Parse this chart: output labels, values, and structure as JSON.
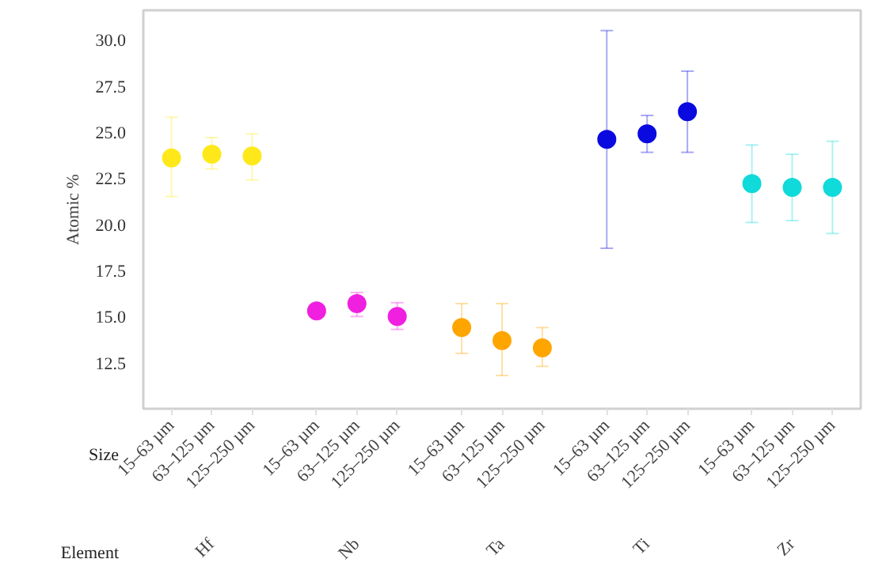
{
  "chart_data": {
    "type": "scatter",
    "categories": [
      "15–63 µm",
      "63–125 µm",
      "125–250 µm",
      "15–63 µm",
      "63–125 µm",
      "125–250 µm",
      "15–63 µm",
      "63–125 µm",
      "125–250 µm",
      "15–63 µm",
      "63–125 µm",
      "125–250 µm",
      "15–63 µm",
      "63–125 µm",
      "125–250 µm"
    ],
    "ylabel": "Atomic %",
    "ylim": [
      10.0,
      31.6
    ],
    "yticks": [
      12.5,
      {
        "value": 15,
        "label": "15.0"
      },
      17.5,
      {
        "value": 20,
        "label": "20.0"
      },
      22.5,
      {
        "value": 25,
        "label": "25.0"
      },
      27.5,
      {
        "value": 30,
        "label": "30.0"
      }
    ],
    "grid": false,
    "marker": "circle",
    "annotations": [
      "Size",
      "Element",
      "Hf",
      "Nb",
      "Ta",
      "Ti",
      "Zr"
    ],
    "series": [
      {
        "color": "#ffe81a",
        "values": [
          23.6,
          23.8,
          23.7,
          null,
          null,
          null,
          null,
          null,
          null,
          null,
          null,
          null,
          null,
          null,
          null
        ],
        "errors": [
          [
            21.5,
            25.8
          ],
          [
            23.0,
            24.7
          ],
          [
            22.4,
            24.9
          ],
          null,
          null,
          null,
          null,
          null,
          null,
          null,
          null,
          null,
          null,
          null,
          null
        ]
      },
      {
        "color": "#f020e0",
        "values": [
          null,
          null,
          null,
          15.3,
          15.7,
          15.0,
          null,
          null,
          null,
          null,
          null,
          null,
          null,
          null,
          null
        ],
        "errors": [
          null,
          null,
          null,
          null,
          [
            15.0,
            16.3
          ],
          [
            14.3,
            15.75
          ],
          null,
          null,
          null,
          null,
          null,
          null,
          null,
          null,
          null
        ]
      },
      {
        "color": "#ffa500",
        "values": [
          null,
          null,
          null,
          null,
          null,
          null,
          14.4,
          13.7,
          13.3,
          null,
          null,
          null,
          null,
          null,
          null
        ],
        "errors": [
          null,
          null,
          null,
          null,
          null,
          null,
          [
            13.0,
            15.7
          ],
          [
            11.8,
            15.7
          ],
          [
            12.3,
            14.4
          ],
          null,
          null,
          null,
          null,
          null,
          null
        ]
      },
      {
        "color": "#0a0ae0",
        "values": [
          null,
          null,
          null,
          null,
          null,
          null,
          null,
          null,
          null,
          24.6,
          24.9,
          26.1,
          null,
          null,
          null
        ],
        "errors": [
          null,
          null,
          null,
          null,
          null,
          null,
          null,
          null,
          null,
          [
            18.7,
            30.5
          ],
          [
            23.9,
            25.9
          ],
          [
            23.9,
            28.3
          ],
          null,
          null,
          null
        ]
      },
      {
        "color": "#10dada",
        "values": [
          null,
          null,
          null,
          null,
          null,
          null,
          null,
          null,
          null,
          null,
          null,
          null,
          22.2,
          22.0,
          22.0
        ],
        "errors": [
          null,
          null,
          null,
          null,
          null,
          null,
          null,
          null,
          null,
          null,
          null,
          null,
          [
            20.1,
            24.3
          ],
          [
            20.2,
            23.8
          ],
          [
            19.5,
            24.5
          ]
        ]
      }
    ]
  }
}
